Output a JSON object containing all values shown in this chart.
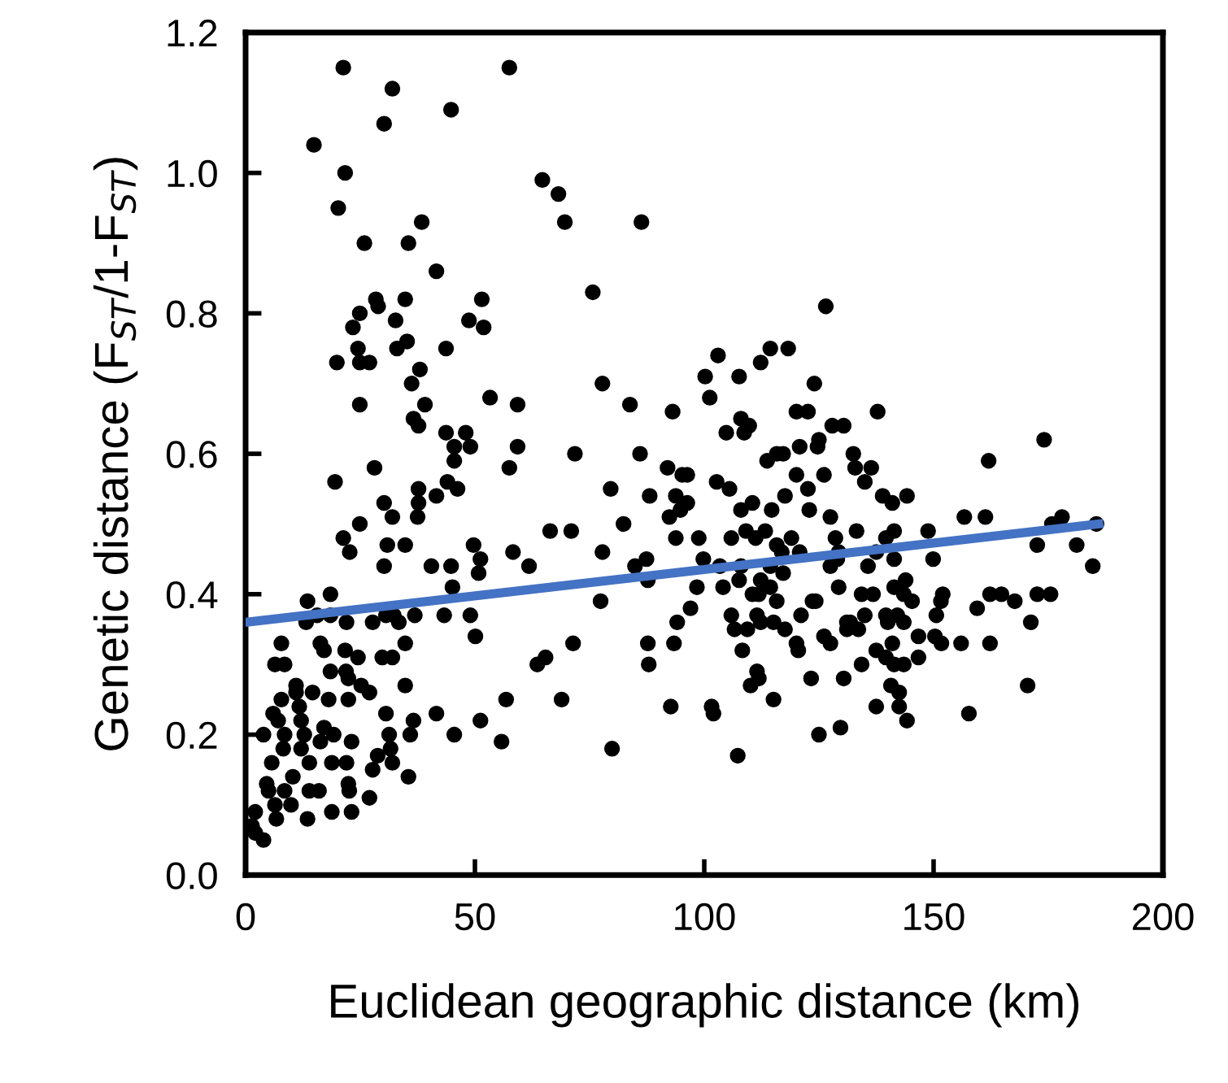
{
  "chart_data": {
    "type": "scatter",
    "xlabel": "Euclidean geographic distance (km)",
    "ylabel": "Genetic distance (F$_{ST}$/1-F$_{ST}$)",
    "xlim": [
      0,
      200
    ],
    "xticks": [
      0,
      50,
      100,
      150,
      200
    ],
    "ylim": [
      0,
      1.2
    ],
    "yticks": [
      {
        "value": 0,
        "label": "0.0"
      },
      0.2,
      0.4,
      0.6,
      0.8,
      {
        "value": 1,
        "label": "1.0"
      },
      1.2
    ],
    "grid": false,
    "series": [
      {
        "color": "#000000",
        "marker": "circle",
        "x": [
          21.3,
          32.0,
          57.5,
          44.8,
          30.2,
          14.9,
          21.7,
          20.2,
          64.7,
          68.2,
          69.6,
          86.3,
          25.9,
          38.4,
          35.5,
          41.6,
          75.7,
          51.5,
          28.4,
          28.9,
          34.8,
          24.9,
          23.4,
          32.7,
          48.7,
          51.9,
          35.2,
          33.0,
          24.5,
          24.9,
          27.0,
          19.9,
          43.7,
          38.0,
          36.2,
          77.8,
          100.2,
          103.0,
          101.2,
          53.3,
          59.3,
          24.9,
          39.1,
          36.6,
          37.7,
          43.7,
          48.0,
          45.5,
          49.0,
          59.3,
          83.8,
          93.1,
          71.8,
          86.0,
          28.1,
          19.5,
          45.5,
          57.5,
          92.0,
          95.2,
          79.6,
          102.7,
          37.7,
          41.6,
          44.0,
          46.2,
          30.2,
          37.7,
          37.5,
          32.0,
          24.9,
          21.3,
          22.7,
          30.9,
          34.8,
          30.2,
          49.7,
          51.2,
          50.8,
          40.5,
          44.8,
          58.3,
          61.8,
          66.4,
          71.0,
          82.4,
          77.8,
          84.9,
          87.4,
          87.7,
          88.1,
          93.8,
          96.3,
          94.8,
          92.4,
          93.8,
          98.8,
          99.8,
          98.4,
          97.0,
          94.1,
          93.4,
          87.7,
          87.9,
          77.4,
          71.4,
          65.4,
          63.6,
          68.9,
          92.7,
          79.9,
          56.8,
          55.8,
          45.5,
          51.2,
          41.6,
          50.1,
          49.0,
          45.1,
          43.3,
          36.9,
          33.4,
          32.3,
          30.6,
          27.7,
          34.8,
          32.0,
          29.8,
          24.5,
          22.0,
          18.5,
          13.5,
          13.2,
          15.6,
          18.5,
          16.3,
          17.1,
          21.7,
          18.5,
          21.9,
          22.4,
          25.2,
          27.0,
          22.4,
          18.1,
          14.6,
          11.0,
          7.8,
          6.4,
          8.5,
          7.8,
          11.0,
          11.7,
          12.1,
          6.0,
          7.1,
          3.9,
          8.5,
          12.8,
          17.1,
          19.2,
          16.3,
          12.1,
          8.2,
          5.7,
          13.9,
          18.8,
          22.0,
          23.1,
          30.6,
          31.3,
          31.6,
          28.8,
          32.0,
          27.7,
          35.9,
          36.6,
          34.8,
          35.5,
          22.4,
          22.6,
          27.0,
          23.1,
          18.8,
          13.9,
          16.0,
          13.5,
          10.3,
          8.5,
          9.9,
          6.4,
          5.0,
          4.6,
          6.7,
          2.1,
          1.4,
          3.9,
          2.1,
          126.5,
          114.4,
          118.3,
          112.3,
          107.6,
          124.0,
          137.8,
          120.1,
          122.6,
          108.0,
          109.8,
          108.7,
          104.8,
          127.9,
          130.4,
          125.0,
          124.7,
          174.1,
          120.8,
          117.2,
          115.8,
          113.7,
          162.0,
          132.5,
          132.9,
          136.4,
          135.0,
          126.1,
          120.1,
          96.3,
          105.5,
          117.6,
          122.6,
          122.9,
          110.5,
          108.0,
          114.7,
          138.9,
          141.0,
          144.2,
          127.5,
          156.7,
          161.3,
          178.0,
          175.8,
          185.5,
          133.2,
          141.4,
          148.8,
          105.9,
          109.1,
          111.2,
          113.3,
          119.0,
          128.6,
          139.6,
          115.8,
          116.9,
          120.8,
          129.3,
          137.5,
          149.9,
          141.4,
          172.6,
          181.2,
          184.7,
          103.4,
          108.0,
          114.4,
          127.5,
          129.0,
          135.7,
          107.6,
          117.2,
          112.3,
          104.1,
          110.5,
          114.4,
          111.9,
          129.3,
          134.3,
          136.8,
          141.4,
          143.9,
          143.5,
          145.3,
          152.0,
          151.6,
          162.3,
          164.8,
          167.7,
          172.6,
          175.5,
          115.8,
          123.6,
          121.1,
          124.3,
          111.5,
          105.9,
          106.6,
          112.3,
          115.1,
          117.6,
          109.4,
          120.1,
          120.5,
          126.1,
          127.5,
          131.1,
          131.8,
          131.1,
          133.6,
          135.0,
          139.6,
          140.0,
          142.1,
          143.5,
          150.6,
          159.5,
          171.2,
          137.5,
          141.0,
          141.4,
          139.6,
          143.5,
          146.7,
          146.7,
          150.3,
          151.7,
          156.0,
          162.3,
          108.3,
          134.3,
          111.5,
          111.9,
          110.1,
          115.1,
          123.3,
          130.4,
          140.7,
          142.5,
          142.5,
          137.5,
          144.2,
          157.7,
          170.5,
          101.6,
          102.0,
          125.0,
          129.7,
          107.3
        ],
        "values": [
          1.15,
          1.12,
          1.15,
          1.09,
          1.07,
          1.04,
          1.0,
          0.95,
          0.99,
          0.97,
          0.93,
          0.93,
          0.9,
          0.93,
          0.9,
          0.86,
          0.83,
          0.82,
          0.82,
          0.81,
          0.82,
          0.8,
          0.78,
          0.79,
          0.79,
          0.78,
          0.76,
          0.75,
          0.75,
          0.73,
          0.73,
          0.73,
          0.75,
          0.72,
          0.7,
          0.7,
          0.71,
          0.74,
          0.68,
          0.68,
          0.67,
          0.67,
          0.67,
          0.65,
          0.64,
          0.63,
          0.63,
          0.61,
          0.61,
          0.61,
          0.67,
          0.66,
          0.6,
          0.6,
          0.58,
          0.56,
          0.59,
          0.58,
          0.58,
          0.57,
          0.55,
          0.56,
          0.55,
          0.54,
          0.56,
          0.55,
          0.53,
          0.53,
          0.51,
          0.51,
          0.5,
          0.48,
          0.46,
          0.47,
          0.47,
          0.44,
          0.47,
          0.45,
          0.43,
          0.44,
          0.44,
          0.46,
          0.44,
          0.49,
          0.49,
          0.5,
          0.46,
          0.44,
          0.45,
          0.42,
          0.54,
          0.54,
          0.53,
          0.52,
          0.51,
          0.48,
          0.48,
          0.45,
          0.41,
          0.38,
          0.36,
          0.33,
          0.33,
          0.3,
          0.39,
          0.33,
          0.31,
          0.3,
          0.25,
          0.24,
          0.18,
          0.25,
          0.19,
          0.2,
          0.22,
          0.23,
          0.34,
          0.37,
          0.41,
          0.37,
          0.37,
          0.36,
          0.37,
          0.37,
          0.36,
          0.33,
          0.31,
          0.31,
          0.31,
          0.36,
          0.4,
          0.39,
          0.36,
          0.37,
          0.37,
          0.33,
          0.32,
          0.32,
          0.29,
          0.29,
          0.28,
          0.27,
          0.26,
          0.25,
          0.25,
          0.26,
          0.27,
          0.33,
          0.3,
          0.3,
          0.25,
          0.26,
          0.24,
          0.22,
          0.23,
          0.22,
          0.2,
          0.2,
          0.2,
          0.21,
          0.2,
          0.19,
          0.18,
          0.18,
          0.16,
          0.16,
          0.16,
          0.16,
          0.19,
          0.23,
          0.2,
          0.18,
          0.17,
          0.16,
          0.15,
          0.2,
          0.22,
          0.27,
          0.14,
          0.13,
          0.12,
          0.11,
          0.09,
          0.09,
          0.12,
          0.12,
          0.08,
          0.14,
          0.12,
          0.1,
          0.1,
          0.12,
          0.13,
          0.08,
          0.09,
          0.07,
          0.05,
          0.06,
          0.81,
          0.75,
          0.75,
          0.73,
          0.71,
          0.7,
          0.66,
          0.66,
          0.66,
          0.65,
          0.64,
          0.63,
          0.63,
          0.64,
          0.64,
          0.62,
          0.61,
          0.62,
          0.61,
          0.6,
          0.6,
          0.59,
          0.59,
          0.6,
          0.58,
          0.58,
          0.56,
          0.57,
          0.57,
          0.57,
          0.55,
          0.54,
          0.55,
          0.52,
          0.53,
          0.52,
          0.52,
          0.54,
          0.53,
          0.54,
          0.51,
          0.51,
          0.51,
          0.51,
          0.5,
          0.5,
          0.49,
          0.49,
          0.49,
          0.48,
          0.49,
          0.48,
          0.49,
          0.48,
          0.48,
          0.48,
          0.47,
          0.46,
          0.46,
          0.46,
          0.46,
          0.45,
          0.45,
          0.47,
          0.47,
          0.44,
          0.44,
          0.44,
          0.44,
          0.44,
          0.45,
          0.44,
          0.42,
          0.43,
          0.42,
          0.41,
          0.4,
          0.41,
          0.4,
          0.41,
          0.4,
          0.4,
          0.41,
          0.42,
          0.4,
          0.39,
          0.4,
          0.39,
          0.4,
          0.4,
          0.39,
          0.4,
          0.4,
          0.39,
          0.39,
          0.37,
          0.39,
          0.37,
          0.37,
          0.35,
          0.36,
          0.36,
          0.35,
          0.35,
          0.33,
          0.32,
          0.34,
          0.33,
          0.36,
          0.36,
          0.35,
          0.35,
          0.37,
          0.37,
          0.36,
          0.37,
          0.36,
          0.37,
          0.38,
          0.36,
          0.32,
          0.33,
          0.3,
          0.31,
          0.3,
          0.31,
          0.34,
          0.34,
          0.33,
          0.33,
          0.33,
          0.32,
          0.3,
          0.29,
          0.28,
          0.27,
          0.25,
          0.28,
          0.28,
          0.27,
          0.26,
          0.24,
          0.24,
          0.22,
          0.23,
          0.27,
          0.24,
          0.23,
          0.2,
          0.21,
          0.17
        ]
      },
      {
        "type": "line",
        "color": "#4472c4",
        "line_style": "solid",
        "x": [
          0,
          186
        ],
        "values": [
          0.36,
          0.5
        ]
      }
    ]
  }
}
